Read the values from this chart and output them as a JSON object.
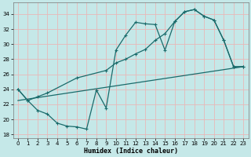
{
  "xlabel": "Humidex (Indice chaleur)",
  "bg_color": "#c5e8e8",
  "grid_color": "#e8b8b8",
  "line_color": "#1a6b6b",
  "xlim": [
    -0.5,
    23.5
  ],
  "ylim": [
    17.5,
    35.5
  ],
  "xticks": [
    0,
    1,
    2,
    3,
    4,
    5,
    6,
    7,
    8,
    9,
    10,
    11,
    12,
    13,
    14,
    15,
    16,
    17,
    18,
    19,
    20,
    21,
    22,
    23
  ],
  "yticks": [
    18,
    20,
    22,
    24,
    26,
    28,
    30,
    32,
    34
  ],
  "curve1_x": [
    0,
    1,
    2,
    3,
    4,
    5,
    6,
    7,
    8,
    9,
    10,
    11,
    12,
    13,
    14,
    15,
    16,
    17,
    18,
    19,
    20,
    21,
    22,
    23
  ],
  "curve1_y": [
    24,
    22.5,
    21.2,
    20.7,
    19.5,
    19.1,
    19.0,
    18.7,
    23.9,
    21.5,
    29.2,
    31.2,
    32.9,
    32.7,
    32.6,
    29.2,
    33.0,
    34.3,
    34.6,
    33.7,
    33.2,
    30.5,
    27.0,
    27.0
  ],
  "curve2_x": [
    0,
    1,
    2,
    3,
    6,
    9,
    10,
    11,
    12,
    13,
    14,
    15,
    16,
    17,
    18,
    19,
    20,
    21,
    22,
    23
  ],
  "curve2_y": [
    24,
    22.5,
    23.0,
    23.5,
    25.5,
    26.5,
    27.5,
    28.0,
    28.7,
    29.3,
    30.5,
    31.4,
    33.0,
    34.3,
    34.6,
    33.7,
    33.2,
    30.5,
    27.0,
    27.0
  ],
  "curve3_x": [
    0,
    23
  ],
  "curve3_y": [
    22.5,
    27.0
  ],
  "marker_size": 3,
  "linewidth": 0.9
}
